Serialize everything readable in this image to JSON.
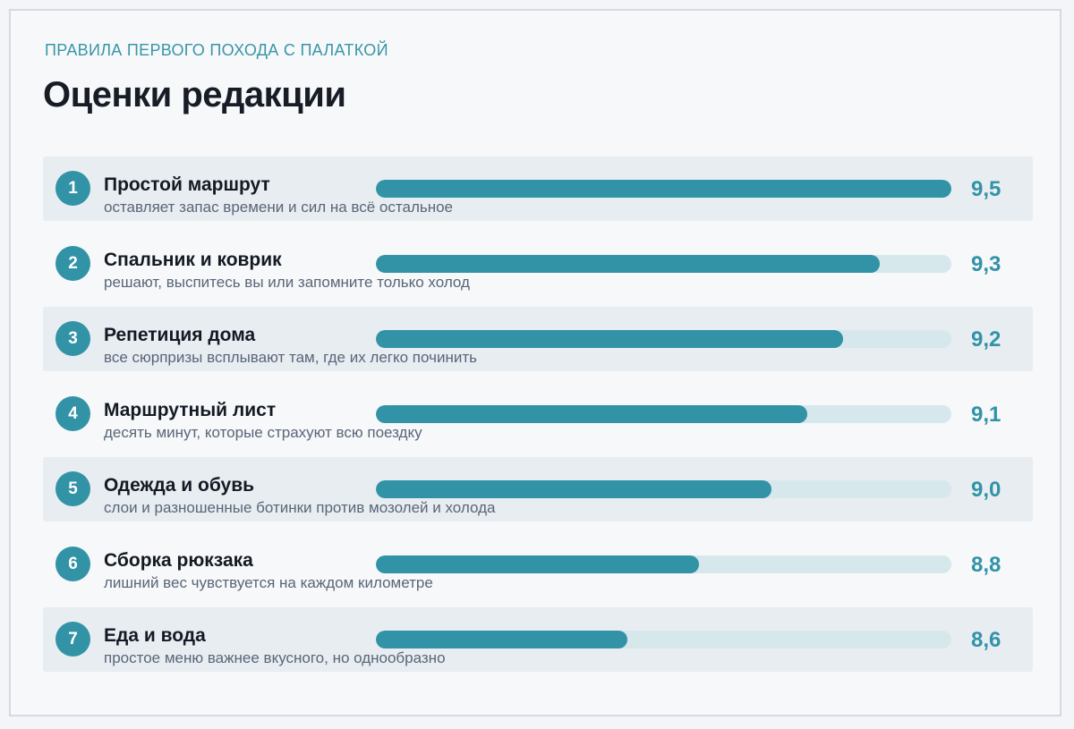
{
  "header": {
    "kicker": "ПРАВИЛА ПЕРВОГО ПОХОДА С ПАЛАТКОЙ",
    "title": "Оценки редакции"
  },
  "colors": {
    "accent": "#3293a7",
    "track": "#d6e8eb",
    "row_shade": "#e8edf2",
    "kicker": "#3a96a6"
  },
  "chart_data": {
    "type": "bar",
    "orientation": "horizontal",
    "title": "Оценки редакции",
    "xlim": [
      0,
      10
    ],
    "categories": [
      "Простой маршрут",
      "Спальник и коврик",
      "Репетиция дома",
      "Маршрутный лист",
      "Одежда и обувь",
      "Сборка рюкзака",
      "Еда и вода"
    ],
    "values": [
      9.5,
      9.3,
      9.2,
      9.1,
      9.0,
      8.8,
      8.6
    ],
    "items": [
      {
        "rank": "1",
        "name": "Простой маршрут",
        "note": "оставляет запас времени и сил на всё остальное",
        "value": 9.5,
        "label": "9,5"
      },
      {
        "rank": "2",
        "name": "Спальник и коврик",
        "note": "решают, выспитесь вы или запомните только холод",
        "value": 9.3,
        "label": "9,3"
      },
      {
        "rank": "3",
        "name": "Репетиция дома",
        "note": "все сюрпризы всплывают там, где их легко починить",
        "value": 9.2,
        "label": "9,2"
      },
      {
        "rank": "4",
        "name": "Маршрутный лист",
        "note": "десять минут, которые страхуют всю поездку",
        "value": 9.1,
        "label": "9,1"
      },
      {
        "rank": "5",
        "name": "Одежда и обувь",
        "note": "слои и разношенные ботинки против мозолей и холода",
        "value": 9.0,
        "label": "9,0"
      },
      {
        "rank": "6",
        "name": "Сборка рюкзака",
        "note": "лишний вес чувствуется на каждом километре",
        "value": 8.8,
        "label": "8,8"
      },
      {
        "rank": "7",
        "name": "Еда и вода",
        "note": "простое меню важнее вкусного, но однообразно",
        "value": 8.6,
        "label": "8,6"
      }
    ]
  }
}
